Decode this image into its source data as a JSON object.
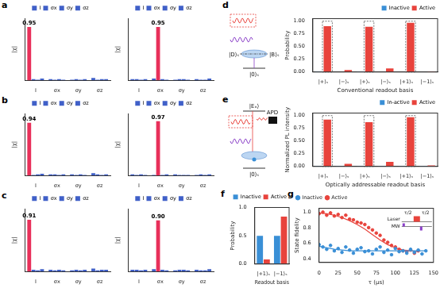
{
  "figure": {
    "panel_labels": [
      "a",
      "b",
      "c",
      "d",
      "e",
      "f",
      "g"
    ]
  },
  "chart_data": [
    {
      "type": "bar",
      "y_label": "|χ|",
      "categories": [
        "I",
        "σx",
        "σy",
        "σz"
      ],
      "ylim": [
        0,
        1.1
      ],
      "tick_labels": "x",
      "data_labels": true,
      "legend": "top",
      "series": [
        {
          "name": "I",
          "color": "#4060c8",
          "colors": [
            "#e8305a",
            "#4060c8",
            "#4060c8",
            "#4060c8"
          ],
          "values": [
            0.95,
            0.02,
            0.01,
            0.04
          ],
          "value_labels": [
            "0.95",
            null,
            null,
            null
          ]
        },
        {
          "name": "σx",
          "color": "#4060c8",
          "values": [
            0.02,
            0.01,
            0.02,
            0.01
          ]
        },
        {
          "name": "σy",
          "color": "#4060c8",
          "values": [
            0.01,
            0.02,
            0.01,
            0.02
          ]
        },
        {
          "name": "σz",
          "color": "#4060c8",
          "values": [
            0.03,
            0.01,
            0.02,
            0.02
          ]
        }
      ]
    },
    {
      "type": "bar",
      "y_label": "|χ|",
      "categories": [
        "I",
        "σx",
        "σy",
        "σz"
      ],
      "ylim": [
        0,
        1.1
      ],
      "tick_labels": "x",
      "data_labels": true,
      "legend": "top",
      "series": [
        {
          "name": "I",
          "color": "#4060c8",
          "values": [
            0.02,
            0.03,
            0.01,
            0.02
          ]
        },
        {
          "name": "σx",
          "color": "#4060c8",
          "colors": [
            "#4060c8",
            "#e8305a",
            "#4060c8",
            "#4060c8"
          ],
          "values": [
            0.02,
            0.95,
            0.02,
            0.01
          ],
          "value_labels": [
            null,
            "0.95",
            null,
            null
          ]
        },
        {
          "name": "σy",
          "color": "#4060c8",
          "values": [
            0.01,
            0.02,
            0.02,
            0.01
          ]
        },
        {
          "name": "σz",
          "color": "#4060c8",
          "values": [
            0.02,
            0.01,
            0.01,
            0.03
          ]
        }
      ]
    },
    {
      "type": "bar",
      "y_label": "|χ|",
      "categories": [
        "I",
        "σx",
        "σy",
        "σz"
      ],
      "ylim": [
        0,
        1.1
      ],
      "tick_labels": "x",
      "data_labels": true,
      "legend": "top",
      "series": [
        {
          "name": "I",
          "color": "#4060c8",
          "colors": [
            "#e8305a",
            "#4060c8",
            "#4060c8",
            "#4060c8"
          ],
          "values": [
            0.94,
            0.02,
            0.02,
            0.04
          ],
          "value_labels": [
            "0.94",
            null,
            null,
            null
          ]
        },
        {
          "name": "σx",
          "color": "#4060c8",
          "values": [
            0.01,
            0.02,
            0.01,
            0.02
          ]
        },
        {
          "name": "σy",
          "color": "#4060c8",
          "values": [
            0.02,
            0.01,
            0.02,
            0.01
          ]
        },
        {
          "name": "σz",
          "color": "#4060c8",
          "values": [
            0.03,
            0.02,
            0.01,
            0.02
          ]
        }
      ]
    },
    {
      "type": "bar",
      "y_label": "|χ|",
      "categories": [
        "I",
        "σx",
        "σy",
        "σz"
      ],
      "ylim": [
        0,
        1.1
      ],
      "tick_labels": "x",
      "data_labels": true,
      "legend": "top",
      "series": [
        {
          "name": "I",
          "color": "#4060c8",
          "values": [
            0.02,
            0.01,
            0.02,
            0.01
          ]
        },
        {
          "name": "σx",
          "color": "#4060c8",
          "colors": [
            "#4060c8",
            "#e8305a",
            "#4060c8",
            "#4060c8"
          ],
          "values": [
            0.01,
            0.97,
            0.01,
            0.02
          ],
          "value_labels": [
            null,
            "0.97",
            null,
            null
          ]
        },
        {
          "name": "σy",
          "color": "#4060c8",
          "values": [
            0.02,
            0.01,
            0.01,
            0.01
          ]
        },
        {
          "name": "σz",
          "color": "#4060c8",
          "values": [
            0.01,
            0.02,
            0.01,
            0.02
          ]
        }
      ]
    },
    {
      "type": "bar",
      "y_label": "|χ|",
      "categories": [
        "I",
        "σx",
        "σy",
        "σz"
      ],
      "ylim": [
        0,
        1.1
      ],
      "tick_labels": "x",
      "data_labels": true,
      "legend": "top",
      "series": [
        {
          "name": "I",
          "color": "#4060c8",
          "colors": [
            "#e8305a",
            "#4060c8",
            "#4060c8",
            "#4060c8"
          ],
          "values": [
            0.91,
            0.03,
            0.02,
            0.05
          ],
          "value_labels": [
            "0.91",
            null,
            null,
            null
          ]
        },
        {
          "name": "σx",
          "color": "#4060c8",
          "values": [
            0.03,
            0.02,
            0.03,
            0.02
          ]
        },
        {
          "name": "σy",
          "color": "#4060c8",
          "values": [
            0.02,
            0.03,
            0.02,
            0.03
          ]
        },
        {
          "name": "σz",
          "color": "#4060c8",
          "values": [
            0.04,
            0.02,
            0.03,
            0.03
          ]
        }
      ]
    },
    {
      "type": "bar",
      "y_label": "|χ|",
      "categories": [
        "I",
        "σx",
        "σy",
        "σz"
      ],
      "ylim": [
        0,
        1.1
      ],
      "tick_labels": "x",
      "data_labels": true,
      "legend": "top",
      "series": [
        {
          "name": "I",
          "color": "#4060c8",
          "values": [
            0.03,
            0.04,
            0.02,
            0.03
          ]
        },
        {
          "name": "σx",
          "color": "#4060c8",
          "colors": [
            "#4060c8",
            "#e8305a",
            "#4060c8",
            "#4060c8"
          ],
          "values": [
            0.03,
            0.9,
            0.03,
            0.02
          ],
          "value_labels": [
            null,
            "0.90",
            null,
            null
          ]
        },
        {
          "name": "σy",
          "color": "#4060c8",
          "values": [
            0.02,
            0.03,
            0.03,
            0.02
          ]
        },
        {
          "name": "σz",
          "color": "#4060c8",
          "values": [
            0.03,
            0.02,
            0.02,
            0.04
          ]
        }
      ]
    },
    {
      "type": "bar",
      "y_label": "Probability",
      "x_label": "Conventional readout basis",
      "categories": [
        "|+⟩ₛ",
        "|−⟩ₛ",
        "|+⟩ₛ",
        "|−⟩ₛ",
        "|+1⟩ₛ",
        "|−1⟩ₛ"
      ],
      "ylim": [
        0,
        1.05
      ],
      "yticks": [
        {
          "value": 0,
          "label": "0.00"
        },
        0.25,
        {
          "value": 0.5,
          "label": "0.50"
        },
        0.75,
        {
          "value": 1,
          "label": "1.00"
        }
      ],
      "legend": "top",
      "reference_values": [
        1,
        0,
        1,
        0,
        1,
        0
      ],
      "series": [
        {
          "name": "Inactive",
          "color": "#3a8fd6",
          "values": [
            0.01,
            0.0,
            0.01,
            0.0,
            0.0,
            0.0
          ]
        },
        {
          "name": "Active",
          "color": "#e8433c",
          "values": [
            0.9,
            0.04,
            0.89,
            0.07,
            0.97,
            0.01
          ]
        }
      ]
    },
    {
      "type": "bar",
      "y_label": "Normalized PL intensity",
      "x_label": "Optically addressable readout basis",
      "categories": [
        "|+⟩ₛ",
        "|−⟩ₛ",
        "|+⟩ₛ",
        "|−⟩ₛ",
        "|+1⟩ₛ",
        "|−1⟩ₛ"
      ],
      "ylim": [
        0,
        1.05
      ],
      "yticks": [
        {
          "value": 0,
          "label": "0.00"
        },
        0.25,
        {
          "value": 0.5,
          "label": "0.50"
        },
        0.75,
        {
          "value": 1,
          "label": "1.00"
        }
      ],
      "legend": "top",
      "reference_values": [
        1,
        0,
        1,
        0,
        1,
        0
      ],
      "series": [
        {
          "name": "In-active",
          "color": "#3a8fd6",
          "values": [
            0.01,
            0.01,
            0.01,
            0.01,
            0.01,
            0.01
          ]
        },
        {
          "name": "Active",
          "color": "#e8433c",
          "values": [
            0.92,
            0.05,
            0.87,
            0.09,
            0.97,
            0.02
          ]
        }
      ]
    },
    {
      "type": "bar",
      "y_label": "Probability",
      "x_label": "Readout basis",
      "categories": [
        "|+1⟩ₛ",
        "|−1⟩ₛ"
      ],
      "ylim": [
        0,
        1
      ],
      "yticks": [
        {
          "value": 0,
          "label": "0.0"
        },
        0.5,
        {
          "value": 1,
          "label": "1.0"
        }
      ],
      "legend": "top",
      "series": [
        {
          "name": "Inactive",
          "color": "#3a8fd6",
          "values": [
            0.5,
            0.5
          ]
        },
        {
          "name": "Active",
          "color": "#e8433c",
          "values": [
            0.08,
            0.84
          ]
        }
      ]
    },
    {
      "type": "scatter",
      "y_label": "State fidelity",
      "x_label": "τ (μs)",
      "xlim": [
        0,
        150
      ],
      "xticks": [
        0,
        25,
        50,
        75,
        100,
        125,
        150
      ],
      "ylim": [
        0.35,
        1.05
      ],
      "yticks": [
        0.4,
        0.6,
        0.8,
        {
          "value": 1,
          "label": "1.0"
        }
      ],
      "legend": "top",
      "inset": {
        "laser": "Laser",
        "mw": "MW",
        "gaps": [
          "τ/2",
          "τ/2"
        ]
      },
      "series": [
        {
          "name": "Inactive",
          "color": "#3a8fd6",
          "marker": "circle",
          "x": [
            0,
            5,
            10,
            15,
            20,
            25,
            30,
            35,
            40,
            45,
            50,
            55,
            60,
            65,
            70,
            75,
            80,
            85,
            90,
            95,
            100,
            105,
            110,
            115,
            120,
            125,
            130,
            135,
            140
          ],
          "values": [
            0.58,
            0.55,
            0.52,
            0.57,
            0.5,
            0.53,
            0.48,
            0.55,
            0.51,
            0.47,
            0.52,
            0.54,
            0.49,
            0.5,
            0.46,
            0.52,
            0.55,
            0.48,
            0.51,
            0.45,
            0.53,
            0.49,
            0.5,
            0.47,
            0.52,
            0.48,
            0.51,
            0.46,
            0.5
          ],
          "fit": {
            "line_style": "solid",
            "x": [
              0,
              20,
              40,
              140
            ],
            "values": [
              0.56,
              0.52,
              0.5,
              0.5
            ]
          }
        },
        {
          "name": "Active",
          "color": "#e8433c",
          "marker": "circle",
          "x": [
            0,
            5,
            10,
            15,
            20,
            25,
            30,
            35,
            40,
            45,
            50,
            55,
            60,
            65,
            70,
            75,
            80,
            85,
            90,
            95,
            100,
            105,
            110,
            115,
            120,
            125,
            130
          ],
          "values": [
            0.98,
            1.0,
            0.96,
            0.99,
            0.95,
            0.97,
            0.93,
            0.96,
            0.91,
            0.9,
            0.87,
            0.86,
            0.84,
            0.8,
            0.77,
            0.73,
            0.7,
            0.64,
            0.61,
            0.57,
            0.55,
            0.52,
            0.5,
            0.49,
            0.51,
            0.47,
            0.5
          ],
          "fit": {
            "line_style": "solid",
            "x": [
              0,
              10,
              20,
              30,
              40,
              50,
              60,
              70,
              80,
              90,
              100,
              110,
              120,
              130
            ],
            "values": [
              0.99,
              0.98,
              0.96,
              0.93,
              0.89,
              0.84,
              0.78,
              0.71,
              0.64,
              0.58,
              0.54,
              0.51,
              0.5,
              0.49
            ]
          }
        }
      ]
    }
  ],
  "diagrams": {
    "d": {
      "dark": "|D⟩ₛ",
      "bright": "|B⟩ₛ",
      "ground": "|0⟩ₛ"
    },
    "e": {
      "excited": "|Eₓ⟩",
      "detector": "APD",
      "ground": "|0⟩ₛ"
    }
  }
}
